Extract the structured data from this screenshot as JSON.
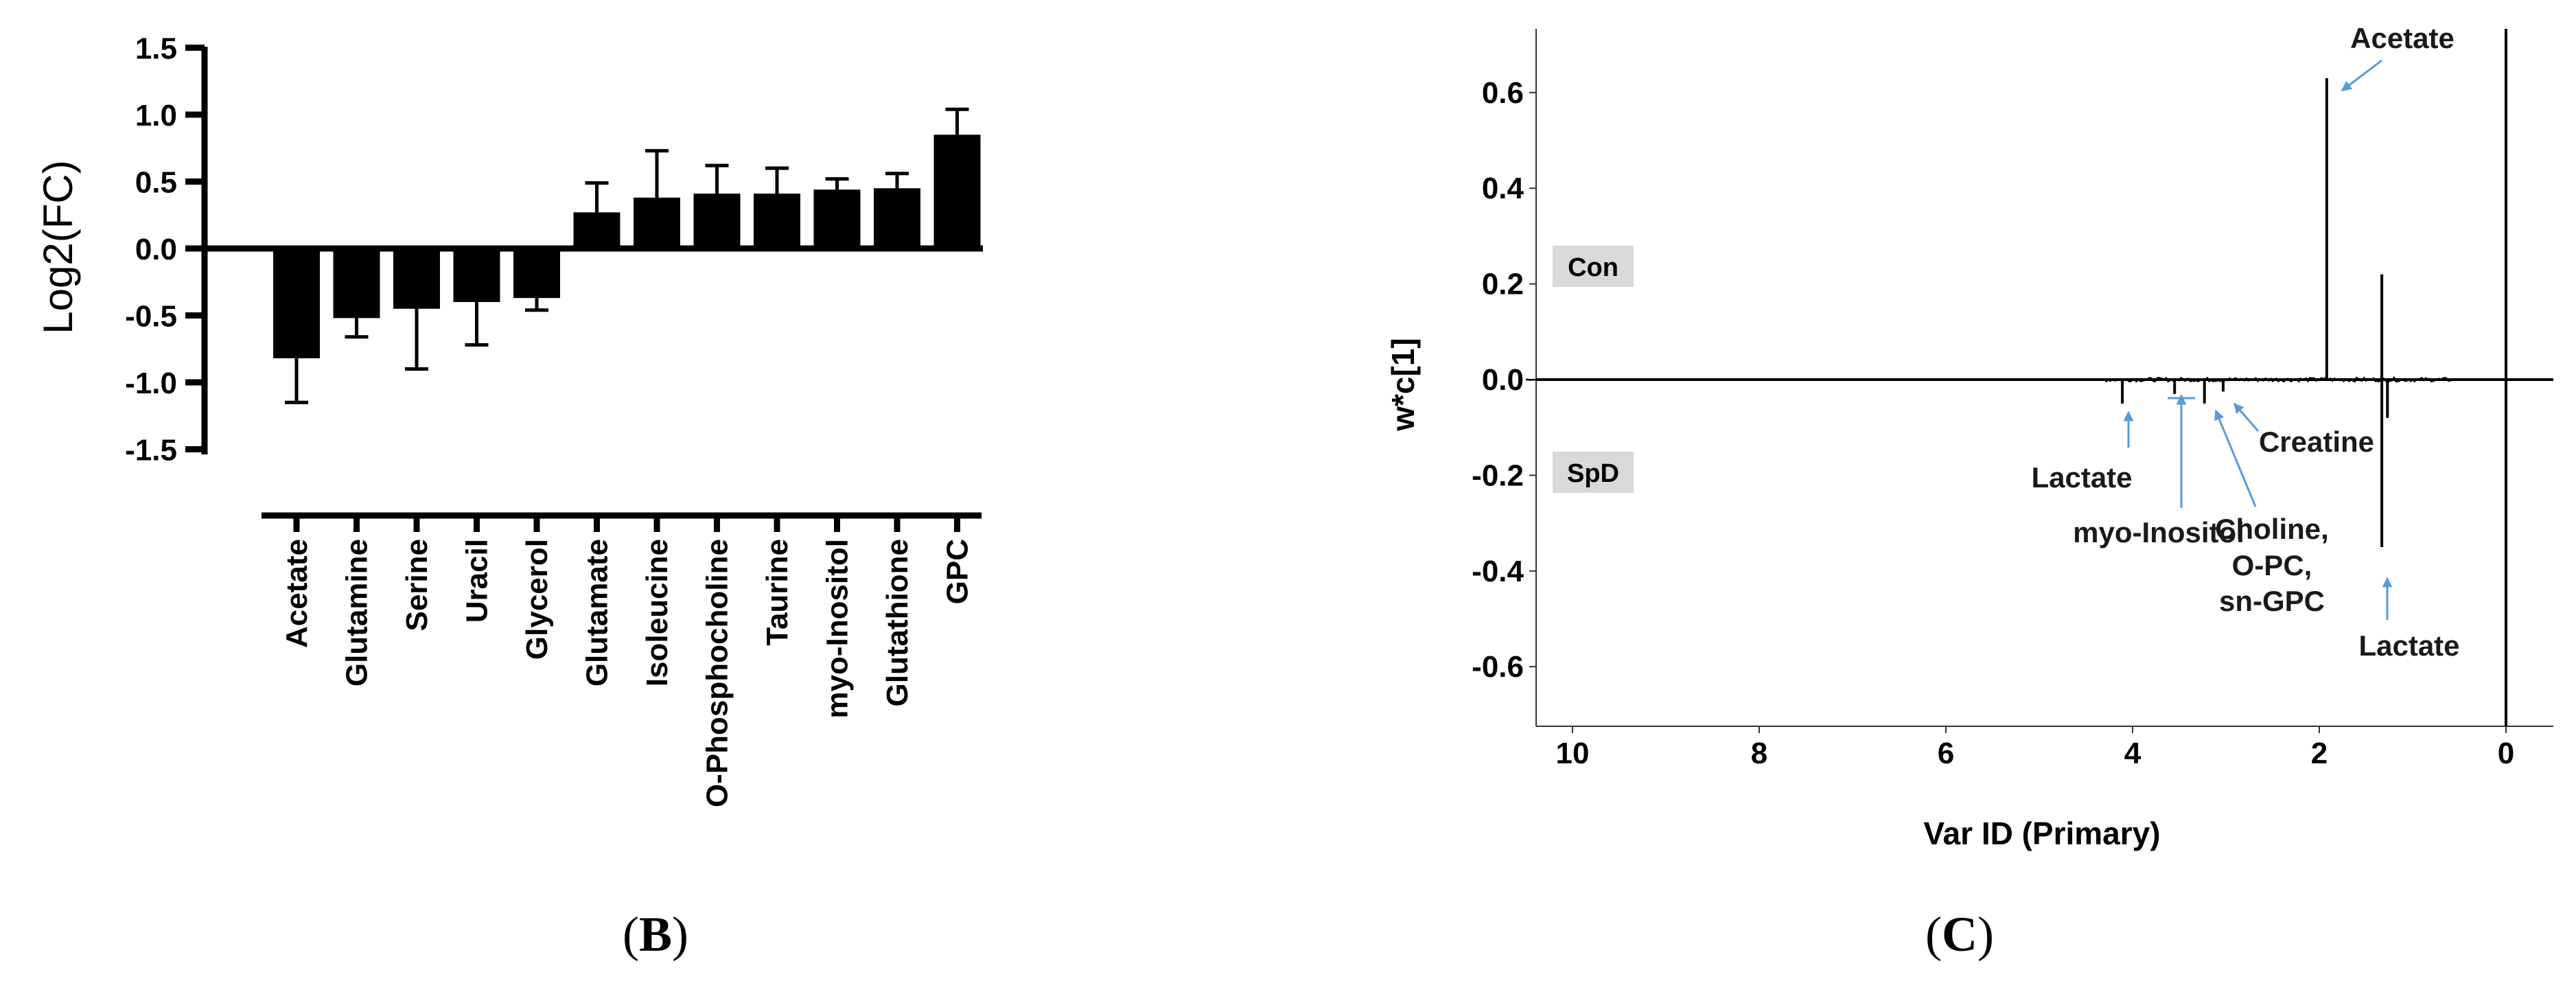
{
  "panels": {
    "b": {
      "label_open": "(",
      "label_letter": "B",
      "label_close": ")"
    },
    "c": {
      "label_open": "(",
      "label_letter": "C",
      "label_close": ")"
    }
  },
  "chart_data": [
    {
      "type": "bar",
      "ylabel": "Log2(FC)",
      "ylim": [
        -1.5,
        1.5
      ],
      "yticks": [
        "1.5",
        "1.0",
        "0.5",
        "0.0",
        "-0.5",
        "-1.0",
        "-1.5"
      ],
      "categories": [
        "Acetate",
        "Glutamine",
        "Serine",
        "Uracil",
        "Glycerol",
        "Glutamate",
        "Isoleucine",
        "O-Phosphocholine",
        "Taurine",
        "myo-Inositol",
        "Glutathione",
        "GPC"
      ],
      "values": [
        -0.82,
        -0.52,
        -0.45,
        -0.4,
        -0.37,
        0.27,
        0.38,
        0.41,
        0.41,
        0.44,
        0.45,
        0.85
      ],
      "errors": [
        0.33,
        0.14,
        0.45,
        0.32,
        0.09,
        0.22,
        0.35,
        0.21,
        0.19,
        0.08,
        0.11,
        0.19
      ],
      "color": "#000000"
    },
    {
      "type": "line",
      "xlabel": "Var ID (Primary)",
      "ylabel": "w*c[1]",
      "xlim": [
        10.5,
        -0.5
      ],
      "ylim": [
        -0.7,
        0.7
      ],
      "xticks": [
        "10",
        "8",
        "6",
        "4",
        "2",
        "0"
      ],
      "yticks": [
        "0.6",
        "0.4",
        "0.2",
        "0.0",
        "-0.2",
        "-0.4",
        "-0.6"
      ],
      "group_labels": {
        "top": "Con",
        "bottom": "SpD"
      },
      "spikes": [
        {
          "x": 1.92,
          "y": 0.63
        },
        {
          "x": 1.33,
          "y": 0.22
        },
        {
          "x": 1.33,
          "y": -0.35
        },
        {
          "x": 1.27,
          "y": -0.08
        },
        {
          "x": 4.11,
          "y": -0.05
        },
        {
          "x": 3.55,
          "y": -0.03
        },
        {
          "x": 3.23,
          "y": -0.05
        },
        {
          "x": 3.03,
          "y": -0.025
        }
      ],
      "annotations": [
        {
          "lines": [
            "Acetate"
          ],
          "x": 1.92,
          "y": 0.63
        },
        {
          "lines": [
            "Lactate"
          ],
          "x": 4.11,
          "y": -0.03
        },
        {
          "lines": [
            "myo-Inositol"
          ],
          "x": 3.55,
          "y": -0.03
        },
        {
          "lines": [
            "Choline,",
            "O-PC,",
            "sn-GPC"
          ],
          "x": 3.23,
          "y": -0.03
        },
        {
          "lines": [
            "Creatine"
          ],
          "x": 3.03,
          "y": -0.03
        },
        {
          "lines": [
            "Lactate"
          ],
          "x": 1.33,
          "y": -0.35
        }
      ],
      "line_color": "#000000",
      "arrow_color": "#5b9bd5",
      "label_box_color": "#d9d9d9"
    }
  ]
}
